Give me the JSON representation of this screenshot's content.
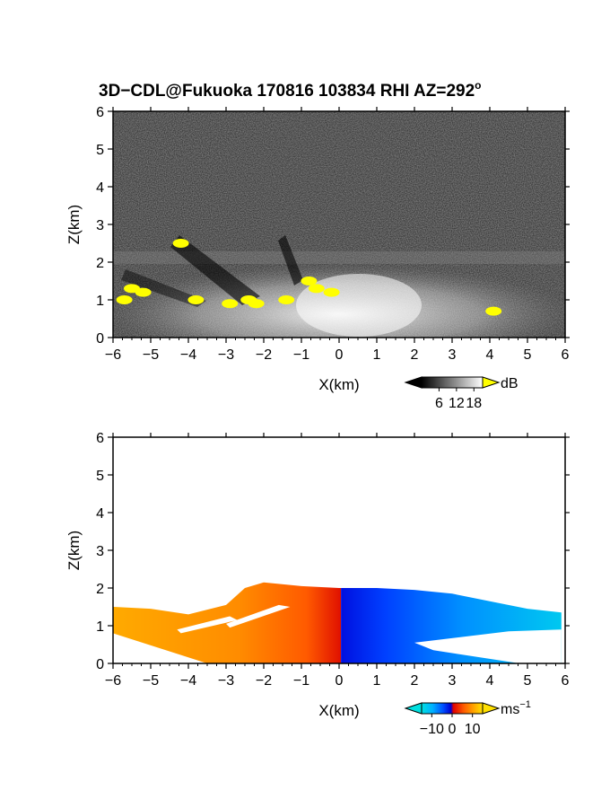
{
  "title": {
    "main": "3D−CDL@Fukuoka 170816 103834 RHI AZ=292",
    "deg": "o"
  },
  "chart_data": [
    {
      "type": "heatmap",
      "name": "",
      "xlabel": "X(km)",
      "ylabel": "Z(km)",
      "xlim": [
        -6,
        6
      ],
      "ylim": [
        0,
        6
      ],
      "xticks": [
        "−6",
        "−5",
        "−4",
        "−3",
        "−2",
        "−1",
        "0",
        "1",
        "2",
        "3",
        "4",
        "5",
        "6"
      ],
      "yticks": [
        "0",
        "1",
        "2",
        "3",
        "4",
        "5",
        "6"
      ],
      "colorbar": {
        "label": "dB",
        "ticks": [
          "6",
          "12",
          "18"
        ],
        "tick_values": [
          6,
          12,
          18
        ],
        "range": [
          0,
          21
        ]
      },
      "highlights": [
        {
          "x": -4.2,
          "z": 2.5
        },
        {
          "x": -5.5,
          "z": 1.3
        },
        {
          "x": -5.2,
          "z": 1.2
        },
        {
          "x": -5.7,
          "z": 1.0
        },
        {
          "x": -3.8,
          "z": 1.0
        },
        {
          "x": -2.9,
          "z": 0.9
        },
        {
          "x": -2.4,
          "z": 1.0
        },
        {
          "x": -2.2,
          "z": 0.9
        },
        {
          "x": -1.4,
          "z": 1.0
        },
        {
          "x": -0.8,
          "z": 1.5
        },
        {
          "x": -0.6,
          "z": 1.3
        },
        {
          "x": -0.2,
          "z": 1.2
        },
        {
          "x": 4.1,
          "z": 0.7
        }
      ]
    },
    {
      "type": "heatmap",
      "name": "",
      "xlabel": "X(km)",
      "ylabel": "Z(km)",
      "xlim": [
        -6,
        6
      ],
      "ylim": [
        0,
        6
      ],
      "xticks": [
        "−6",
        "−5",
        "−4",
        "−3",
        "−2",
        "−1",
        "0",
        "1",
        "2",
        "3",
        "4",
        "5",
        "6"
      ],
      "yticks": [
        "0",
        "1",
        "2",
        "3",
        "4",
        "5",
        "6"
      ],
      "colorbar": {
        "label": "ms",
        "label_sup": "−1",
        "ticks": [
          "−10",
          "0",
          "10"
        ],
        "tick_values": [
          -10,
          0,
          10
        ],
        "range": [
          -15,
          15
        ]
      },
      "coverage_top": [
        [
          -6.0,
          1.5
        ],
        [
          -5.0,
          1.45
        ],
        [
          -4.0,
          1.3
        ],
        [
          -3.0,
          1.55
        ],
        [
          -2.5,
          2.0
        ],
        [
          -2.0,
          2.15
        ],
        [
          -1.0,
          2.05
        ],
        [
          0.0,
          2.0
        ],
        [
          1.0,
          2.0
        ],
        [
          2.0,
          1.95
        ],
        [
          3.0,
          1.85
        ],
        [
          4.0,
          1.65
        ],
        [
          5.0,
          1.45
        ],
        [
          5.9,
          1.35
        ]
      ],
      "velocity_profile": [
        [
          -6.0,
          6
        ],
        [
          -3.0,
          8
        ],
        [
          -1.5,
          10
        ],
        [
          -0.5,
          12
        ],
        [
          0.0,
          0
        ],
        [
          0.1,
          -13
        ],
        [
          1.0,
          -12
        ],
        [
          2.5,
          -10
        ],
        [
          4.0,
          -8
        ],
        [
          5.9,
          -7
        ]
      ]
    }
  ],
  "colors": {
    "frame": "#000000",
    "highlight": "#ffff00",
    "velocity_scale": [
      "#00e0e0",
      "#00b0ff",
      "#0050ff",
      "#0000e0",
      "#e00000",
      "#ff6000",
      "#ffb000",
      "#ffe000"
    ]
  }
}
